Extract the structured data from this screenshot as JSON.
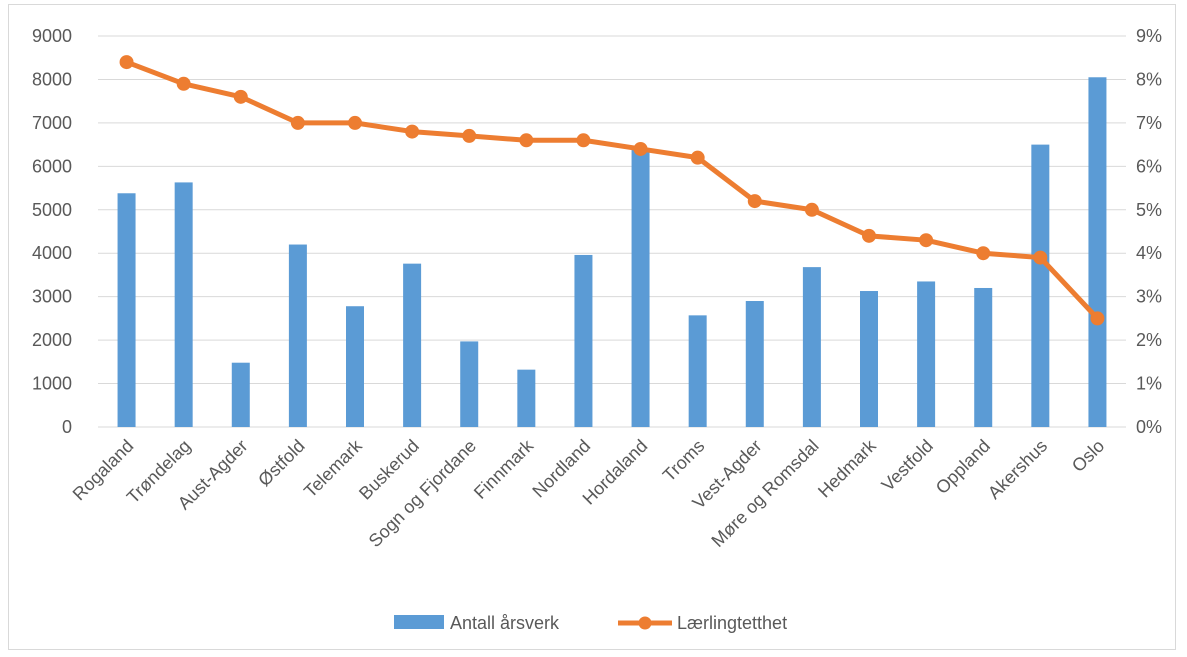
{
  "chart_data": {
    "type": "bar",
    "title": "",
    "xlabel": "",
    "ylabel": "",
    "categories": [
      "Rogaland",
      "Trøndelag",
      "Aust-Agder",
      "Østfold",
      "Telemark",
      "Buskerud",
      "Sogn og Fjordane",
      "Finnmark",
      "Nordland",
      "Hordaland",
      "Troms",
      "Vest-Agder",
      "Møre og Romsdal",
      "Hedmark",
      "Vestfold",
      "Oppland",
      "Akershus",
      "Oslo"
    ],
    "series": [
      {
        "name": "Antall årsverk",
        "type": "bar",
        "axis": "left",
        "color": "#5b9bd5",
        "values": [
          5380,
          5630,
          1480,
          4200,
          2780,
          3760,
          1970,
          1320,
          3960,
          6400,
          2570,
          2900,
          3680,
          3130,
          3350,
          3200,
          6500,
          8050
        ]
      },
      {
        "name": "Lærlingtetthet",
        "type": "line",
        "axis": "right",
        "color": "#ed7d31",
        "values": [
          0.084,
          0.079,
          0.076,
          0.07,
          0.07,
          0.068,
          0.067,
          0.066,
          0.066,
          0.064,
          0.062,
          0.052,
          0.05,
          0.044,
          0.043,
          0.04,
          0.039,
          0.025
        ]
      }
    ],
    "ylim": [
      0,
      9000
    ],
    "y_ticks": [
      "0",
      "1000",
      "2000",
      "3000",
      "4000",
      "5000",
      "6000",
      "7000",
      "8000",
      "9000"
    ],
    "y2lim": [
      0,
      0.09
    ],
    "y2_ticks": [
      "0%",
      "1%",
      "2%",
      "3%",
      "4%",
      "5%",
      "6%",
      "7%",
      "8%",
      "9%"
    ],
    "grid": true,
    "legend_position": "bottom"
  },
  "colors": {
    "grid": "#d9d9d9",
    "tick_text": "#595959"
  }
}
